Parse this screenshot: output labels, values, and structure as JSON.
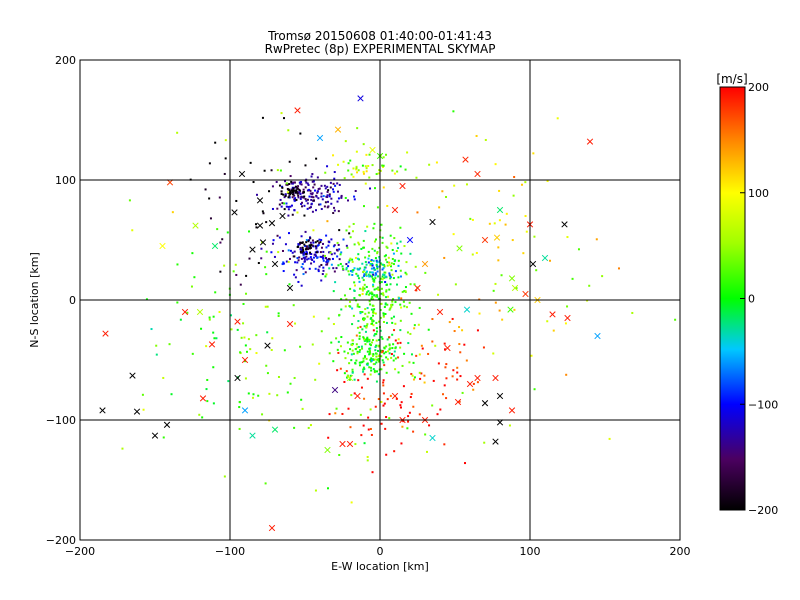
{
  "chart_data": {
    "type": "scatter",
    "title": "Tromsø 20150608 01:40:00-01:41:43",
    "subtitle": "RwPretec (8p) EXPERIMENTAL SKYMAP",
    "xlabel": "E-W location [km]",
    "ylabel": "N-S location [km]",
    "xlim": [
      -200,
      200
    ],
    "ylim": [
      -200,
      200
    ],
    "xticks": [
      "−200",
      "−100",
      "0",
      "100",
      "200"
    ],
    "yticks": [
      "−200",
      "−100",
      "0",
      "100",
      "200"
    ],
    "grid": true,
    "colorbar": {
      "unit": "[m/s]",
      "range": [
        -200,
        200
      ],
      "ticks": [
        "200",
        "100",
        "0",
        "−100",
        "−200"
      ]
    },
    "clusters": [
      {
        "cx": -45,
        "cy": 88,
        "sx": 12,
        "sy": 8,
        "v": -130,
        "n": 160
      },
      {
        "cx": -58,
        "cy": 92,
        "sx": 4,
        "sy": 3,
        "v": -200,
        "n": 45
      },
      {
        "cx": -45,
        "cy": 38,
        "sx": 10,
        "sy": 9,
        "v": -120,
        "n": 160
      },
      {
        "cx": -48,
        "cy": 45,
        "sx": 4,
        "sy": 4,
        "v": -200,
        "n": 35
      },
      {
        "cx": -5,
        "cy": 5,
        "sx": 12,
        "sy": 28,
        "v": 15,
        "n": 320
      },
      {
        "cx": -5,
        "cy": -45,
        "sx": 10,
        "sy": 9,
        "v": 10,
        "n": 140
      },
      {
        "cx": -5,
        "cy": 25,
        "sx": 9,
        "sy": 5,
        "v": -55,
        "n": 70
      },
      {
        "cx": -10,
        "cy": 110,
        "sx": 12,
        "sy": 8,
        "v": 60,
        "n": 45
      },
      {
        "cx": 0,
        "cy": -90,
        "sx": 25,
        "sy": 18,
        "v": 190,
        "n": 60
      },
      {
        "cx": 30,
        "cy": -50,
        "sx": 25,
        "sy": 20,
        "v": 180,
        "n": 50
      },
      {
        "cx": -80,
        "cy": 80,
        "sx": 25,
        "sy": 30,
        "v": -200,
        "n": 45
      },
      {
        "cx": -80,
        "cy": -30,
        "sx": 40,
        "sy": 40,
        "v": 20,
        "n": 90
      },
      {
        "cx": 60,
        "cy": 30,
        "sx": 40,
        "sy": 50,
        "v": 120,
        "n": 60
      },
      {
        "cx": -20,
        "cy": 0,
        "sx": 90,
        "sy": 90,
        "v": 50,
        "n": 140
      }
    ],
    "crosses": [
      {
        "x": -55,
        "y": 158,
        "v": 190
      },
      {
        "x": -13,
        "y": 168,
        "v": -110
      },
      {
        "x": -28,
        "y": 142,
        "v": 130
      },
      {
        "x": -40,
        "y": 135,
        "v": -60
      },
      {
        "x": 140,
        "y": 132,
        "v": 190
      },
      {
        "x": -140,
        "y": 98,
        "v": 175
      },
      {
        "x": 57,
        "y": 117,
        "v": 185
      },
      {
        "x": 65,
        "y": 105,
        "v": 185
      },
      {
        "x": 80,
        "y": 75,
        "v": -20
      },
      {
        "x": 123,
        "y": 63,
        "v": -200
      },
      {
        "x": 100,
        "y": 63,
        "v": 190
      },
      {
        "x": 78,
        "y": 52,
        "v": 120
      },
      {
        "x": 70,
        "y": 50,
        "v": 180
      },
      {
        "x": 53,
        "y": 43,
        "v": 40
      },
      {
        "x": 35,
        "y": 65,
        "v": -200
      },
      {
        "x": 102,
        "y": 30,
        "v": -200
      },
      {
        "x": 110,
        "y": 35,
        "v": -30
      },
      {
        "x": 88,
        "y": 18,
        "v": 40
      },
      {
        "x": 90,
        "y": 10,
        "v": 60
      },
      {
        "x": 97,
        "y": 5,
        "v": 180
      },
      {
        "x": 105,
        "y": 0,
        "v": 120
      },
      {
        "x": 115,
        "y": -12,
        "v": 190
      },
      {
        "x": 125,
        "y": -15,
        "v": 190
      },
      {
        "x": 145,
        "y": -30,
        "v": -60
      },
      {
        "x": 87,
        "y": -8,
        "v": 20
      },
      {
        "x": 58,
        "y": -8,
        "v": -40
      },
      {
        "x": 65,
        "y": -65,
        "v": 190
      },
      {
        "x": 77,
        "y": -65,
        "v": 190
      },
      {
        "x": 80,
        "y": -80,
        "v": -200
      },
      {
        "x": 88,
        "y": -92,
        "v": 190
      },
      {
        "x": 80,
        "y": -102,
        "v": -200
      },
      {
        "x": 77,
        "y": -118,
        "v": -200
      },
      {
        "x": 70,
        "y": -86,
        "v": -200
      },
      {
        "x": 35,
        "y": -115,
        "v": -40
      },
      {
        "x": 30,
        "y": -100,
        "v": 190
      },
      {
        "x": 52,
        "y": -85,
        "v": 190
      },
      {
        "x": -20,
        "y": -120,
        "v": 190
      },
      {
        "x": -25,
        "y": -120,
        "v": 190
      },
      {
        "x": -35,
        "y": -125,
        "v": 40
      },
      {
        "x": -70,
        "y": -108,
        "v": -20
      },
      {
        "x": -85,
        "y": -113,
        "v": -30
      },
      {
        "x": -90,
        "y": -92,
        "v": -60
      },
      {
        "x": -72,
        "y": -190,
        "v": 190
      },
      {
        "x": -142,
        "y": -104,
        "v": -200
      },
      {
        "x": -150,
        "y": -113,
        "v": -200
      },
      {
        "x": -162,
        "y": -93,
        "v": -200
      },
      {
        "x": -165,
        "y": -63,
        "v": -200
      },
      {
        "x": -185,
        "y": -92,
        "v": -200
      },
      {
        "x": -183,
        "y": -28,
        "v": 190
      },
      {
        "x": -118,
        "y": -82,
        "v": 190
      },
      {
        "x": -112,
        "y": -37,
        "v": 190
      },
      {
        "x": -95,
        "y": -65,
        "v": -200
      },
      {
        "x": -90,
        "y": -50,
        "v": 190
      },
      {
        "x": -75,
        "y": -38,
        "v": -200
      },
      {
        "x": -60,
        "y": -20,
        "v": 190
      },
      {
        "x": -95,
        "y": -18,
        "v": 190
      },
      {
        "x": -120,
        "y": -10,
        "v": 60
      },
      {
        "x": -130,
        "y": -10,
        "v": 190
      },
      {
        "x": -145,
        "y": 45,
        "v": 100
      },
      {
        "x": -123,
        "y": 62,
        "v": 60
      },
      {
        "x": -110,
        "y": 45,
        "v": -20
      },
      {
        "x": -92,
        "y": 105,
        "v": -200
      },
      {
        "x": -97,
        "y": 73,
        "v": -200
      },
      {
        "x": -80,
        "y": 83,
        "v": -200
      },
      {
        "x": -80,
        "y": 62,
        "v": -200
      },
      {
        "x": -72,
        "y": 64,
        "v": -200
      },
      {
        "x": -65,
        "y": 70,
        "v": -200
      },
      {
        "x": -85,
        "y": 42,
        "v": -200
      },
      {
        "x": -70,
        "y": 30,
        "v": -200
      },
      {
        "x": -60,
        "y": 10,
        "v": -200
      },
      {
        "x": -78,
        "y": 48,
        "v": -200
      },
      {
        "x": 60,
        "y": -70,
        "v": 190
      },
      {
        "x": 40,
        "y": -10,
        "v": 190
      },
      {
        "x": 45,
        "y": -40,
        "v": 190
      },
      {
        "x": 10,
        "y": -80,
        "v": 190
      },
      {
        "x": 15,
        "y": -100,
        "v": 190
      },
      {
        "x": -15,
        "y": -80,
        "v": 190
      },
      {
        "x": -30,
        "y": -75,
        "v": -140
      },
      {
        "x": -20,
        "y": -65,
        "v": 60
      },
      {
        "x": 25,
        "y": 10,
        "v": 190
      },
      {
        "x": 30,
        "y": 30,
        "v": 140
      },
      {
        "x": 20,
        "y": 50,
        "v": -100
      },
      {
        "x": 10,
        "y": 75,
        "v": 190
      },
      {
        "x": 15,
        "y": 95,
        "v": 190
      },
      {
        "x": -5,
        "y": 125,
        "v": 90
      },
      {
        "x": 0,
        "y": 120,
        "v": 20
      }
    ]
  }
}
